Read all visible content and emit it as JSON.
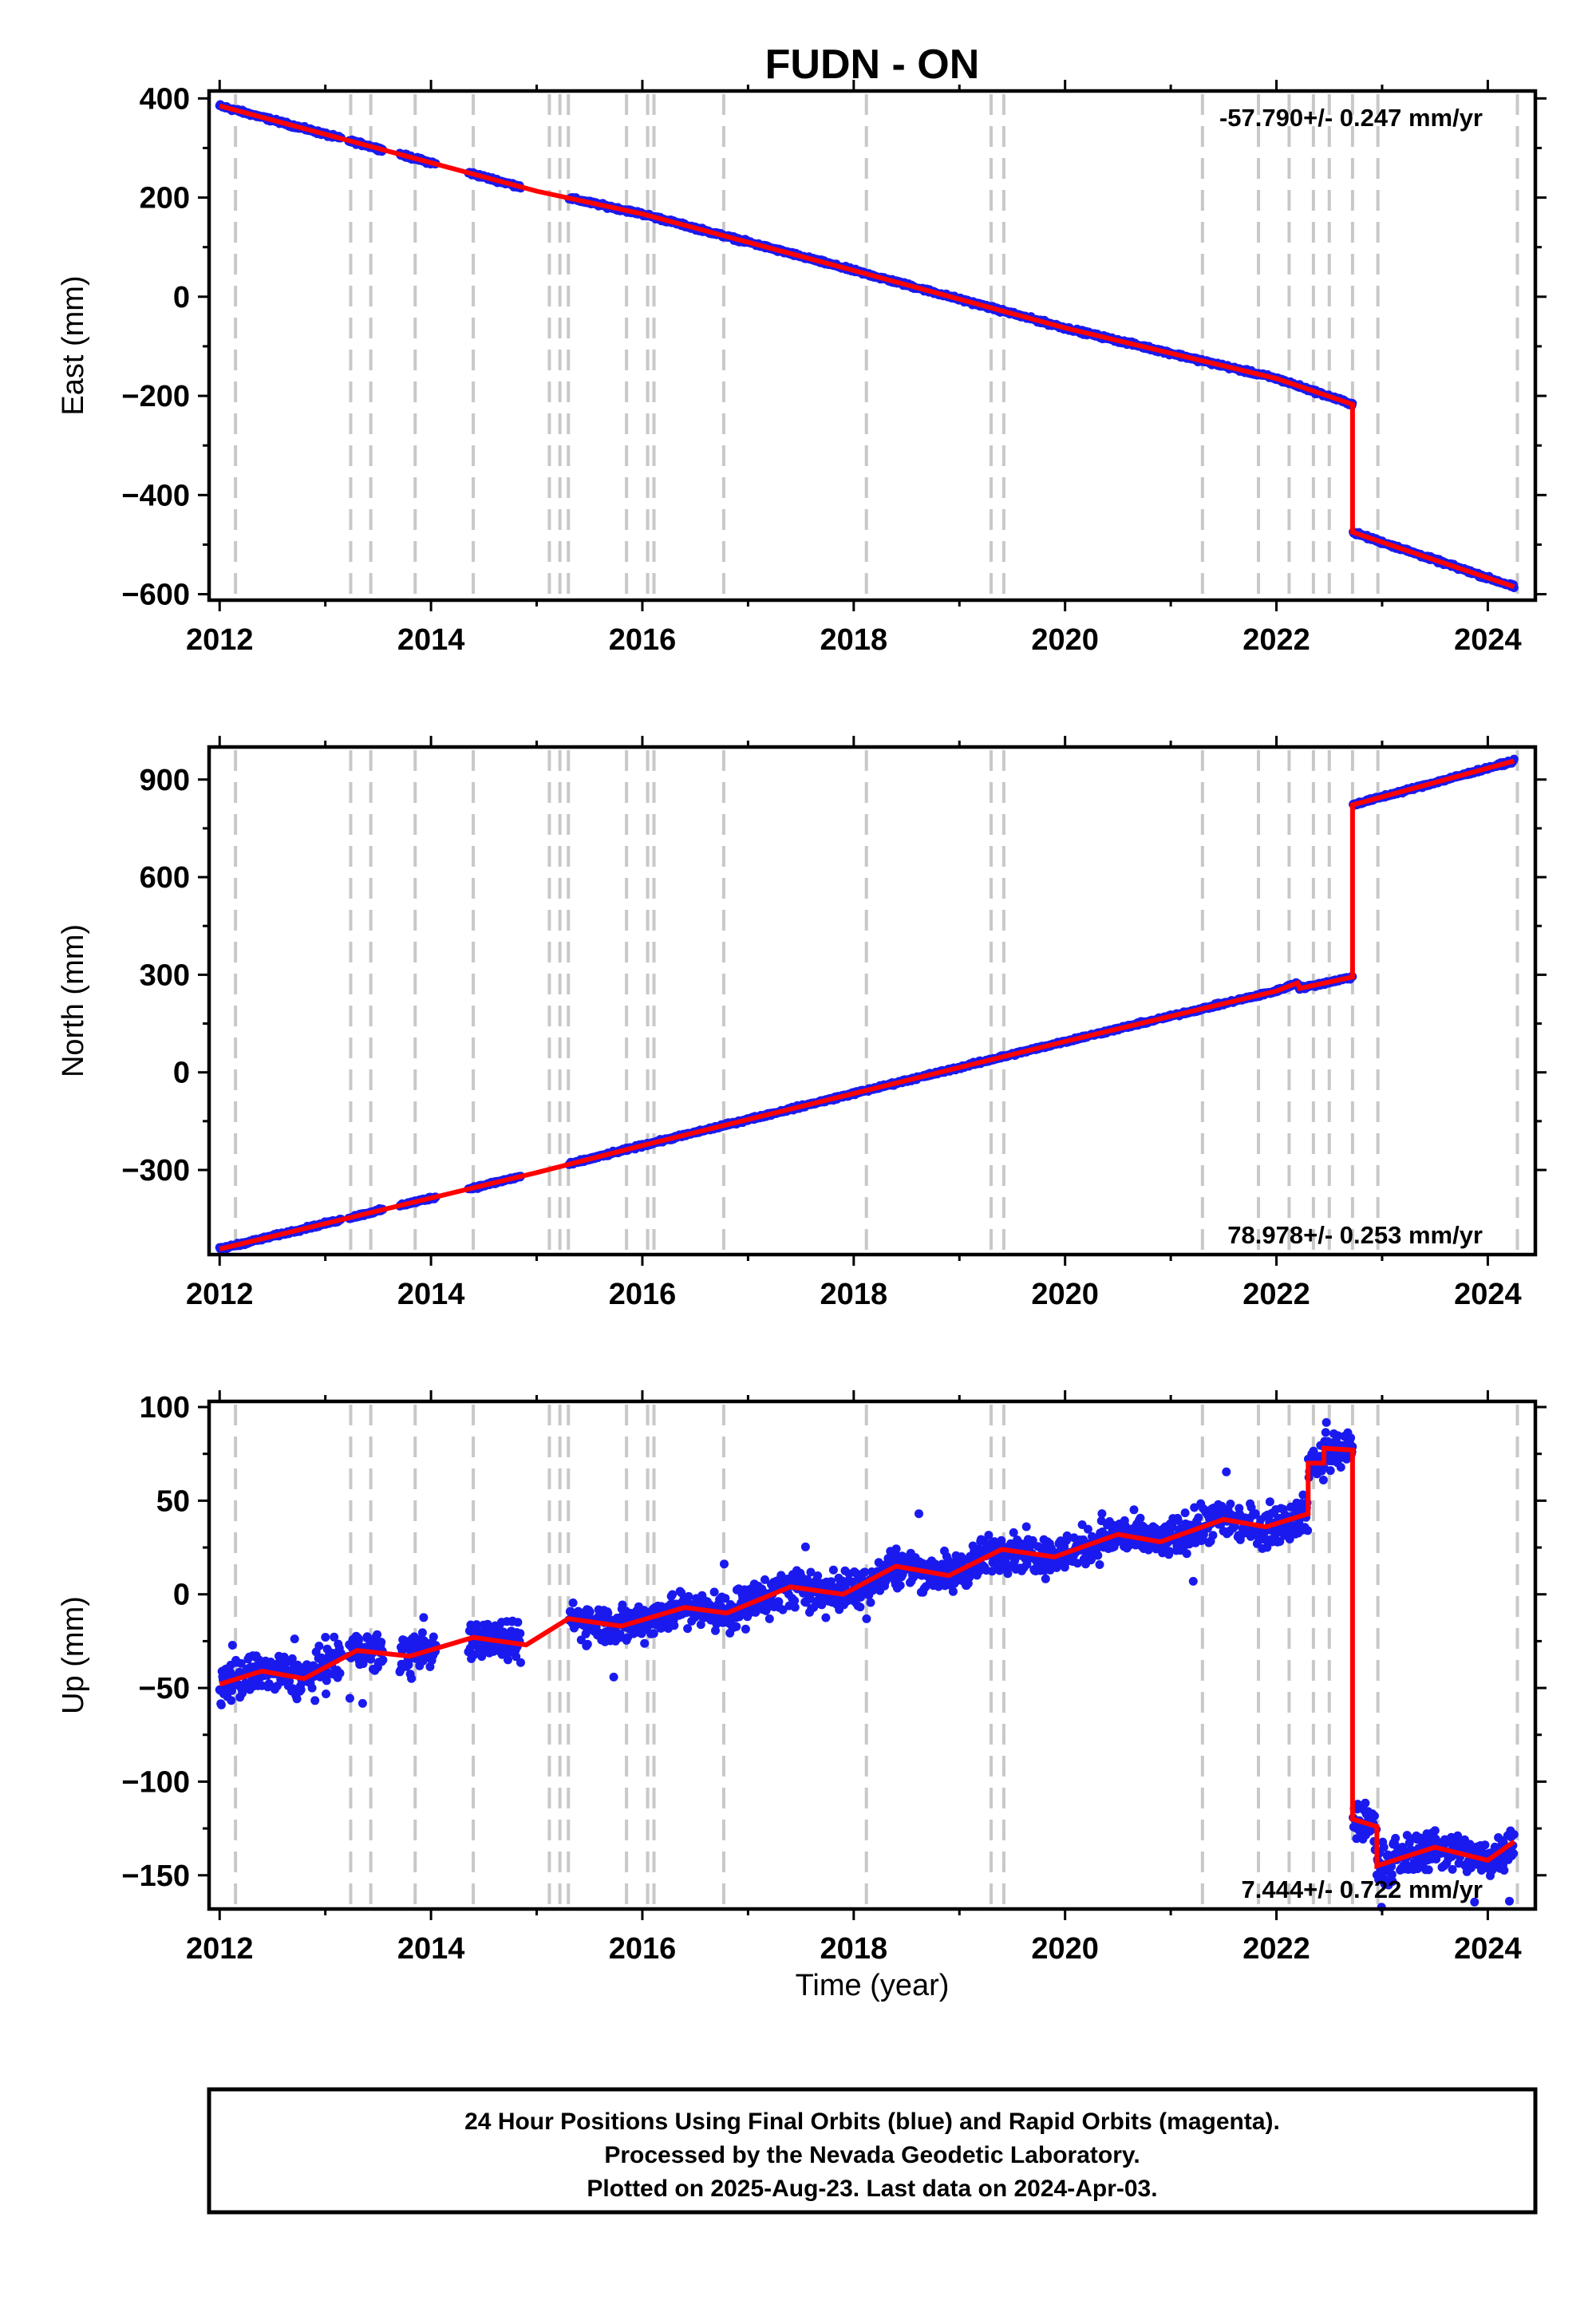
{
  "chart_data": {
    "type": "scatter",
    "title": "FUDN - ON",
    "xlabel": "Time (year)",
    "x_ticks": [
      "2012",
      "2014",
      "2016",
      "2018",
      "2020",
      "2022",
      "2024"
    ],
    "xlim": [
      2011.9,
      2024.45
    ],
    "event_lines": [
      2012.15,
      2013.24,
      2013.43,
      2013.85,
      2014.4,
      2015.12,
      2015.22,
      2015.3,
      2015.85,
      2016.05,
      2016.11,
      2016.77,
      2018.12,
      2019.3,
      2019.42,
      2021.3,
      2021.83,
      2022.12,
      2022.35,
      2022.5,
      2022.72,
      2022.96,
      2024.28
    ],
    "colors": {
      "points": "#1a1aee",
      "model": "#ff0000",
      "event_lines": "#c8c8c8"
    },
    "panels": [
      {
        "ylabel": "East (mm)",
        "ylim": [
          -612,
          415
        ],
        "y_ticks": [
          400,
          200,
          0,
          -200,
          -400,
          -600
        ],
        "y_tick_labels": [
          "400",
          "200",
          "0",
          "−200",
          "−400",
          "−600"
        ],
        "rate": "-57.790+/- 0.247 mm/yr",
        "rate_placement": "top-right",
        "model": [
          [
            2012.0,
            385
          ],
          [
            2015.0,
            213
          ],
          [
            2016.0,
            167
          ],
          [
            2018.0,
            53
          ],
          [
            2020.0,
            -63
          ],
          [
            2022.0,
            -165
          ],
          [
            2022.72,
            -217
          ],
          [
            2022.72,
            -475
          ],
          [
            2024.25,
            -585
          ]
        ],
        "noise_mm": 3
      },
      {
        "ylabel": "North (mm)",
        "ylim": [
          -560,
          1000
        ],
        "y_ticks": [
          900,
          600,
          300,
          0,
          -300
        ],
        "y_tick_labels": [
          "900",
          "600",
          "300",
          "0",
          "−300"
        ],
        "rate": "78.978+/- 0.253 mm/yr",
        "rate_placement": "bottom-right",
        "model": [
          [
            2012.0,
            -543
          ],
          [
            2015.0,
            -308
          ],
          [
            2016.0,
            -225
          ],
          [
            2018.0,
            -65
          ],
          [
            2020.0,
            95
          ],
          [
            2022.0,
            250
          ],
          [
            2022.2,
            275
          ],
          [
            2022.22,
            258
          ],
          [
            2022.72,
            293
          ],
          [
            2022.72,
            822
          ],
          [
            2024.25,
            957
          ]
        ],
        "noise_mm": 4
      },
      {
        "ylabel": "Up (mm)",
        "ylim": [
          -168,
          103
        ],
        "y_ticks": [
          100,
          50,
          0,
          -50,
          -100,
          -150
        ],
        "y_tick_labels": [
          "100",
          "50",
          "0",
          "−50",
          "−100",
          "−150"
        ],
        "rate": "7.444+/- 0.722 mm/yr",
        "rate_placement": "bottom-right",
        "model": [
          [
            2012.0,
            -48
          ],
          [
            2012.4,
            -41
          ],
          [
            2012.8,
            -45
          ],
          [
            2013.3,
            -30
          ],
          [
            2013.8,
            -33
          ],
          [
            2014.4,
            -23
          ],
          [
            2014.9,
            -27
          ],
          [
            2015.3,
            -13
          ],
          [
            2015.8,
            -17
          ],
          [
            2016.4,
            -7
          ],
          [
            2016.8,
            -10
          ],
          [
            2017.4,
            4
          ],
          [
            2017.9,
            0
          ],
          [
            2018.4,
            15
          ],
          [
            2018.9,
            10
          ],
          [
            2019.4,
            24
          ],
          [
            2019.9,
            20
          ],
          [
            2020.5,
            32
          ],
          [
            2020.9,
            28
          ],
          [
            2021.5,
            40
          ],
          [
            2021.9,
            36
          ],
          [
            2022.3,
            43
          ],
          [
            2022.3,
            70
          ],
          [
            2022.45,
            70
          ],
          [
            2022.45,
            78
          ],
          [
            2022.72,
            77
          ],
          [
            2022.72,
            -120
          ],
          [
            2022.95,
            -124
          ],
          [
            2022.95,
            -145
          ],
          [
            2023.5,
            -135
          ],
          [
            2024.0,
            -142
          ],
          [
            2024.25,
            -132
          ]
        ],
        "noise_mm": 9
      }
    ]
  },
  "footer": {
    "line1": "24 Hour Positions Using Final Orbits (blue) and Rapid Orbits (magenta).",
    "line2": "Processed by the Nevada Geodetic Laboratory.",
    "line3": "Plotted on 2025-Aug-23. Last data on 2024-Apr-03."
  }
}
